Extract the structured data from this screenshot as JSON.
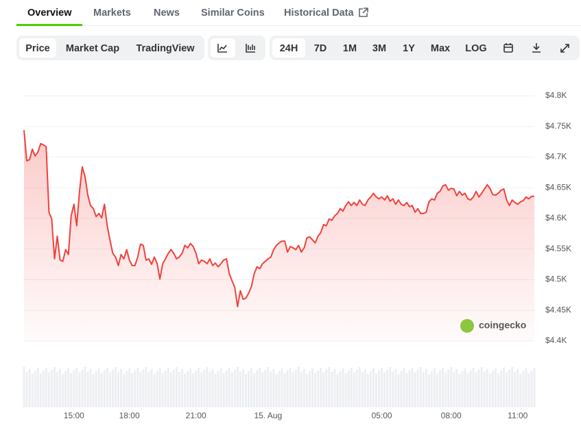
{
  "tabs": [
    "Overview",
    "Markets",
    "News",
    "Similar Coins",
    "Historical Data"
  ],
  "toolbar": {
    "metric": [
      "Price",
      "Market Cap",
      "TradingView"
    ],
    "ranges": [
      "24H",
      "7D",
      "1M",
      "3M",
      "1Y",
      "Max",
      "LOG"
    ]
  },
  "watermark": "coingecko",
  "chart_data": {
    "type": "line",
    "color": "#f0403a",
    "categories": [
      null,
      null,
      null,
      null,
      null,
      null,
      null,
      null,
      null,
      null,
      null,
      null,
      null,
      null,
      null,
      null,
      null,
      null,
      "15:00",
      null,
      null,
      null,
      null,
      null,
      null,
      null,
      null,
      null,
      null,
      null,
      null,
      null,
      null,
      null,
      null,
      null,
      null,
      null,
      "18:00",
      null,
      null,
      null,
      null,
      null,
      null,
      null,
      null,
      null,
      null,
      null,
      null,
      null,
      null,
      null,
      null,
      null,
      null,
      null,
      null,
      null,
      null,
      null,
      "21:00",
      null,
      null,
      null,
      null,
      null,
      null,
      null,
      null,
      null,
      null,
      null,
      null,
      null,
      null,
      null,
      null,
      null,
      null,
      null,
      null,
      null,
      null,
      null,
      null,
      null,
      "15. Aug",
      null,
      null,
      null,
      null,
      null,
      null,
      null,
      null,
      null,
      null,
      null,
      null,
      null,
      null,
      null,
      null,
      null,
      null,
      null,
      null,
      null,
      null,
      null,
      null,
      null,
      null,
      null,
      null,
      null,
      null,
      null,
      null,
      null,
      null,
      null,
      null,
      null,
      null,
      null,
      null,
      "05:00",
      null,
      null,
      null,
      null,
      null,
      null,
      null,
      null,
      null,
      null,
      null,
      null,
      null,
      null,
      null,
      null,
      null,
      null,
      null,
      null,
      null,
      null,
      null,
      null,
      "08:00",
      null,
      null,
      null,
      null,
      null,
      null,
      null,
      null,
      null,
      null,
      null,
      null,
      null,
      null,
      null,
      null,
      null,
      null,
      null,
      null,
      null,
      null,
      null,
      "11:00",
      null,
      null,
      null,
      null,
      null,
      null
    ],
    "values": [
      4744,
      4694,
      4696,
      4713,
      4702,
      4708,
      4722,
      4720,
      4717,
      4610,
      4599,
      4534,
      4571,
      4532,
      4530,
      4549,
      4541,
      4604,
      4623,
      4588,
      4644,
      4684,
      4668,
      4638,
      4621,
      4616,
      4603,
      4608,
      4601,
      4623,
      4588,
      4565,
      4543,
      4537,
      4523,
      4541,
      4534,
      4549,
      4532,
      4523,
      4523,
      4537,
      4558,
      4556,
      4532,
      4534,
      4525,
      4537,
      4526,
      4501,
      4526,
      4534,
      4543,
      4549,
      4543,
      4534,
      4537,
      4543,
      4556,
      4552,
      4559,
      4554,
      4543,
      4526,
      4532,
      4530,
      4526,
      4534,
      4523,
      4527,
      4521,
      4526,
      4532,
      4534,
      4510,
      4498,
      4487,
      4456,
      4482,
      4468,
      4470,
      4478,
      4489,
      4510,
      4521,
      4518,
      4526,
      4530,
      4534,
      4537,
      4549,
      4556,
      4560,
      4563,
      4563,
      4545,
      4554,
      4552,
      4549,
      4556,
      4545,
      4552,
      4568,
      4570,
      4565,
      4560,
      4571,
      4577,
      4590,
      4588,
      4599,
      4597,
      4604,
      4608,
      4616,
      4612,
      4621,
      4627,
      4621,
      4626,
      4621,
      4630,
      4623,
      4621,
      4630,
      4635,
      4641,
      4635,
      4632,
      4635,
      4630,
      4637,
      4628,
      4632,
      4623,
      4630,
      4623,
      4621,
      4626,
      4619,
      4621,
      4610,
      4616,
      4608,
      4608,
      4610,
      4627,
      4632,
      4630,
      4641,
      4644,
      4653,
      4655,
      4646,
      4649,
      4648,
      4637,
      4644,
      4638,
      4641,
      4632,
      4630,
      4635,
      4644,
      4635,
      4641,
      4648,
      4655,
      4649,
      4639,
      4638,
      4641,
      4646,
      4648,
      4630,
      4621,
      4630,
      4626,
      4623,
      4627,
      4629,
      4635,
      4632,
      4636,
      4636
    ],
    "ylim": [
      4400,
      4800
    ],
    "yticks": [
      {
        "value": 4400,
        "label": "$4.4K"
      },
      {
        "value": 4450,
        "label": "$4.45K"
      },
      {
        "value": 4500,
        "label": "$4.5K"
      },
      {
        "value": 4550,
        "label": "$4.55K"
      },
      {
        "value": 4600,
        "label": "$4.6K"
      },
      {
        "value": 4650,
        "label": "$4.65K"
      },
      {
        "value": 4700,
        "label": "$4.7K"
      },
      {
        "value": 4750,
        "label": "$4.75K"
      },
      {
        "value": 4800,
        "label": "$4.8K"
      }
    ],
    "grid": true
  }
}
